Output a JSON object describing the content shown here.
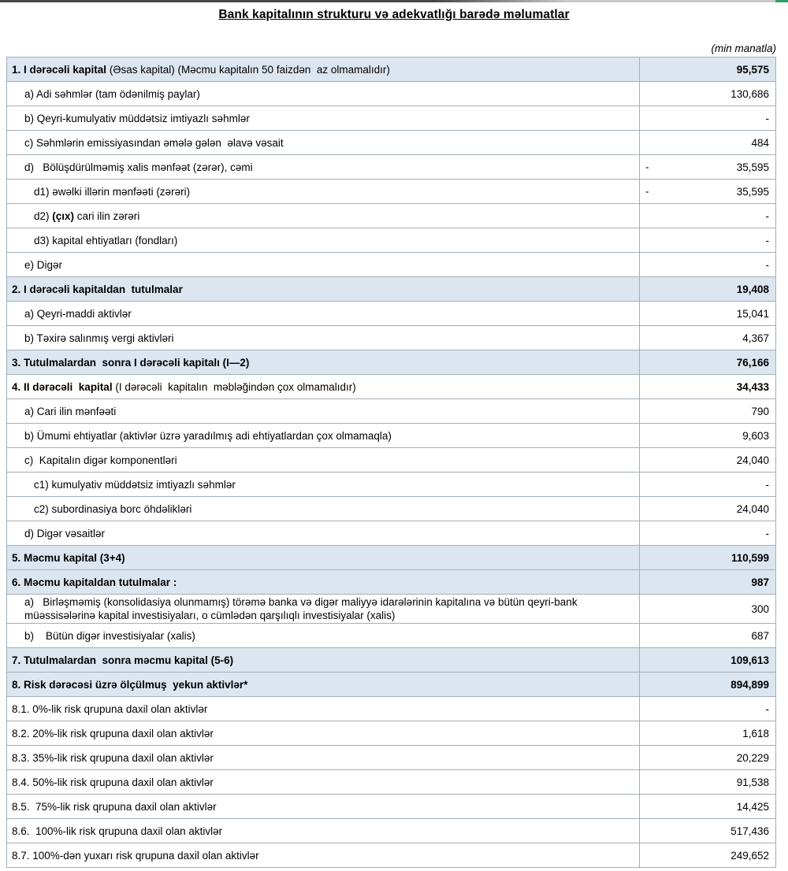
{
  "page": {
    "title": "Bank kapitalının strukturu və adekvatlığı barədə məlumatlar",
    "unit_note": "(min manatla)"
  },
  "colors": {
    "section_row_bg": "#dce6f1",
    "table_border": "#a3aeb8",
    "top_strip_green": "#2e9e68",
    "top_strip_dark": "#474747",
    "top_strip_light": "#c6cac9"
  },
  "table": {
    "rows": [
      {
        "label": [
          {
            "t": "1. I dərəcəli kapital",
            "b": true
          },
          {
            "t": " (Əsas kapital) (Məcmu kapitalın 50 faizdən  az olmamalıdır)",
            "b": false
          }
        ],
        "value": "95,575",
        "minus": false,
        "bg": "blue",
        "vbold": true,
        "indent": 0
      },
      {
        "label": [
          {
            "t": "a) Adi səhmlər (tam ödənilmiş paylar)",
            "b": false
          }
        ],
        "value": "130,686",
        "minus": false,
        "bg": "white",
        "vbold": false,
        "indent": 1
      },
      {
        "label": [
          {
            "t": "b) Qeyri-kumulyativ müddətsiz imtiyazlı səhmlər",
            "b": false
          }
        ],
        "value": "-",
        "minus": false,
        "bg": "white",
        "vbold": false,
        "indent": 1
      },
      {
        "label": [
          {
            "t": "c) Səhmlərin emissiyasından əmələ gələn  əlavə vəsait",
            "b": false
          }
        ],
        "value": "484",
        "minus": false,
        "bg": "white",
        "vbold": false,
        "indent": 1
      },
      {
        "label": [
          {
            "t": "d)   Bölüşdürülməmiş xalis mənfəət (zərər), cəmi",
            "b": false
          }
        ],
        "value": "35,595",
        "minus": true,
        "bg": "white",
        "vbold": false,
        "indent": 1
      },
      {
        "label": [
          {
            "t": "d1) əwəlki illərin mənfəəti (zərəri)",
            "b": false
          }
        ],
        "value": "35,595",
        "minus": true,
        "bg": "white",
        "vbold": false,
        "indent": 2
      },
      {
        "label": [
          {
            "t": "d2) ",
            "b": false
          },
          {
            "t": "(çıx)",
            "b": true
          },
          {
            "t": " cari ilin zərəri",
            "b": false
          }
        ],
        "value": "-",
        "minus": false,
        "bg": "white",
        "vbold": false,
        "indent": 2
      },
      {
        "label": [
          {
            "t": "d3) kapital ehtiyatları (fondları)",
            "b": false
          }
        ],
        "value": "-",
        "minus": false,
        "bg": "white",
        "vbold": false,
        "indent": 2
      },
      {
        "label": [
          {
            "t": "e) Digər",
            "b": false
          }
        ],
        "value": "-",
        "minus": false,
        "bg": "white",
        "vbold": false,
        "indent": 1
      },
      {
        "label": [
          {
            "t": "2. I dərəcəli kapitaldan  tutulmalar",
            "b": true
          }
        ],
        "value": "19,408",
        "minus": false,
        "bg": "blue",
        "vbold": true,
        "indent": 0
      },
      {
        "label": [
          {
            "t": "a) Qeyri-maddi aktivlər",
            "b": false
          }
        ],
        "value": "15,041",
        "minus": false,
        "bg": "white",
        "vbold": false,
        "indent": 1
      },
      {
        "label": [
          {
            "t": "b) Təxirə salınmış vergi aktivləri",
            "b": false
          }
        ],
        "value": "4,367",
        "minus": false,
        "bg": "white",
        "vbold": false,
        "indent": 1
      },
      {
        "label": [
          {
            "t": "3. Tutulmalardan  sonra I dərəcəli kapitalı (I—2)",
            "b": true
          }
        ],
        "value": "76,166",
        "minus": false,
        "bg": "blue",
        "vbold": true,
        "indent": 0
      },
      {
        "label": [
          {
            "t": "4. II dərəcəli  kapital",
            "b": true
          },
          {
            "t": " (I dərəcəli  kapitalın  məbləğindən çox olmamalıdır)",
            "b": false
          }
        ],
        "value": "34,433",
        "minus": false,
        "bg": "white",
        "vbold": true,
        "indent": 0
      },
      {
        "label": [
          {
            "t": "a) Cari ilin mənfəəti",
            "b": false
          }
        ],
        "value": "790",
        "minus": false,
        "bg": "white",
        "vbold": false,
        "indent": 1
      },
      {
        "label": [
          {
            "t": "b) Ümumi ehtiyatlar (aktivlər üzrə yaradılmış adi ehtiyatlardan çox olmamaqla)",
            "b": false
          }
        ],
        "value": "9,603",
        "minus": false,
        "bg": "white",
        "vbold": false,
        "indent": 1
      },
      {
        "label": [
          {
            "t": "c)  Kapitalın digər komponentləri",
            "b": false
          }
        ],
        "value": "24,040",
        "minus": false,
        "bg": "white",
        "vbold": false,
        "indent": 1
      },
      {
        "label": [
          {
            "t": "c1) kumulyativ müddətsiz imtiyazlı səhmlər",
            "b": false
          }
        ],
        "value": "-",
        "minus": false,
        "bg": "white",
        "vbold": false,
        "indent": 2
      },
      {
        "label": [
          {
            "t": "c2) subordinasiya borc öhdəlikləri",
            "b": false
          }
        ],
        "value": "24,040",
        "minus": false,
        "bg": "white",
        "vbold": false,
        "indent": 2
      },
      {
        "label": [
          {
            "t": "d) Digər vəsaitlər",
            "b": false
          }
        ],
        "value": "-",
        "minus": false,
        "bg": "white",
        "vbold": false,
        "indent": 1
      },
      {
        "label": [
          {
            "t": "5. Məcmu kapital (3+4)",
            "b": true
          }
        ],
        "value": "110,599",
        "minus": false,
        "bg": "blue",
        "vbold": true,
        "indent": 0
      },
      {
        "label": [
          {
            "t": "6. Məcmu kapitaldan tutulmalar :",
            "b": true
          }
        ],
        "value": "987",
        "minus": false,
        "bg": "blue",
        "vbold": true,
        "indent": 0
      },
      {
        "label": [
          {
            "t": "a)   Birləşməmiş (konsolidasiya olunmamış) törəmə banka və digər maliyyə idarələrinin kapitalına və bütün qeyri-bank müəssisələrinə kapital investisiyaları, o cümlədən qarşılıqlı investisiyalar (xalis)",
            "b": false
          }
        ],
        "value": "300",
        "minus": false,
        "bg": "white",
        "vbold": false,
        "indent": 1
      },
      {
        "label": [
          {
            "t": "b)    Bütün digər investisiyalar (xalis)",
            "b": false
          }
        ],
        "value": "687",
        "minus": false,
        "bg": "white",
        "vbold": false,
        "indent": 1
      },
      {
        "label": [
          {
            "t": "7. Tutulmalardan  sonra məcmu kapital (5-6)",
            "b": true
          }
        ],
        "value": "109,613",
        "minus": false,
        "bg": "blue",
        "vbold": true,
        "indent": 0
      },
      {
        "label": [
          {
            "t": "8. Risk dərəcəsi üzrə ölçülmuş  yekun aktivlər*",
            "b": true
          }
        ],
        "value": "894,899",
        "minus": false,
        "bg": "blue",
        "vbold": true,
        "indent": 0
      },
      {
        "label": [
          {
            "t": "8.1. 0%-lik risk qrupuna daxil olan aktivlər",
            "b": false
          }
        ],
        "value": "-",
        "minus": false,
        "bg": "white",
        "vbold": false,
        "indent": 0
      },
      {
        "label": [
          {
            "t": "8.2. 20%-lik risk qrupuna daxil olan aktivlər",
            "b": false
          }
        ],
        "value": "1,618",
        "minus": false,
        "bg": "white",
        "vbold": false,
        "indent": 0
      },
      {
        "label": [
          {
            "t": "8.3. 35%-lik risk qrupuna daxil olan aktivlər",
            "b": false
          }
        ],
        "value": "20,229",
        "minus": false,
        "bg": "white",
        "vbold": false,
        "indent": 0
      },
      {
        "label": [
          {
            "t": "8.4. 50%-lik risk qrupuna daxil olan aktivlər",
            "b": false
          }
        ],
        "value": "91,538",
        "minus": false,
        "bg": "white",
        "vbold": false,
        "indent": 0
      },
      {
        "label": [
          {
            "t": "8.5.  75%-lik risk qrupuna daxil olan aktivlər",
            "b": false
          }
        ],
        "value": "14,425",
        "minus": false,
        "bg": "white",
        "vbold": false,
        "indent": 0
      },
      {
        "label": [
          {
            "t": "8.6.  100%-lik risk qrupuna daxil olan aktivlər",
            "b": false
          }
        ],
        "value": "517,436",
        "minus": false,
        "bg": "white",
        "vbold": false,
        "indent": 0
      },
      {
        "label": [
          {
            "t": "8.7. 100%-dən yuxarı risk qrupuna daxil olan aktivlər",
            "b": false
          }
        ],
        "value": "249,652",
        "minus": false,
        "bg": "white",
        "vbold": false,
        "indent": 0
      }
    ]
  }
}
